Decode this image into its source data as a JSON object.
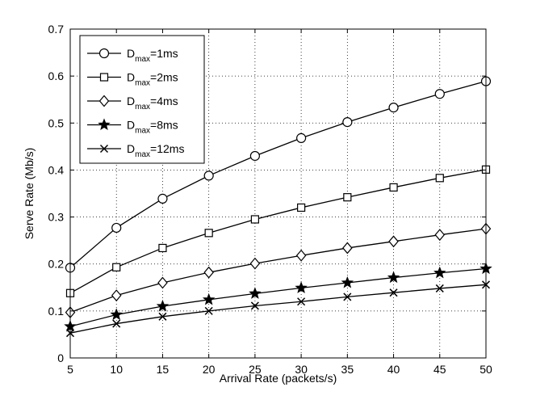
{
  "chart_data": {
    "type": "line",
    "xlabel": "Arrival Rate (packets/s)",
    "ylabel": "Serve Rate (Mb/s)",
    "x": [
      5,
      10,
      15,
      20,
      25,
      30,
      35,
      40,
      45,
      50
    ],
    "xlim": [
      5,
      50
    ],
    "ylim": [
      0,
      0.7
    ],
    "xticks": [
      "5",
      "10",
      "15",
      "20",
      "25",
      "30",
      "35",
      "40",
      "45",
      "50"
    ],
    "yticks": [
      "0",
      "0.1",
      "0.2",
      "0.3",
      "0.4",
      "0.5",
      "0.6",
      "0.7"
    ],
    "grid": true,
    "legend_position": "top-left",
    "colors": {
      "line": "#000000",
      "grid": "#000000",
      "background": "#ffffff"
    },
    "series": [
      {
        "name": "D_max=1ms",
        "legend": {
          "base": "D",
          "sub": "max",
          "rest": "=1ms"
        },
        "marker": "circle",
        "values": [
          0.192,
          0.277,
          0.339,
          0.388,
          0.43,
          0.468,
          0.502,
          0.533,
          0.562,
          0.589
        ]
      },
      {
        "name": "D_max=2ms",
        "legend": {
          "base": "D",
          "sub": "max",
          "rest": "=2ms"
        },
        "marker": "square",
        "values": [
          0.138,
          0.193,
          0.234,
          0.266,
          0.295,
          0.32,
          0.342,
          0.363,
          0.383,
          0.401
        ]
      },
      {
        "name": "D_max=4ms",
        "legend": {
          "base": "D",
          "sub": "max",
          "rest": "=4ms"
        },
        "marker": "diamond",
        "values": [
          0.097,
          0.133,
          0.16,
          0.182,
          0.201,
          0.218,
          0.234,
          0.248,
          0.262,
          0.275
        ]
      },
      {
        "name": "D_max=8ms",
        "legend": {
          "base": "D",
          "sub": "max",
          "rest": "=8ms"
        },
        "marker": "star",
        "values": [
          0.067,
          0.092,
          0.11,
          0.124,
          0.137,
          0.149,
          0.16,
          0.171,
          0.181,
          0.19
        ]
      },
      {
        "name": "D_max=12ms",
        "legend": {
          "base": "D",
          "sub": "max",
          "rest": "=12ms"
        },
        "marker": "x",
        "values": [
          0.053,
          0.073,
          0.088,
          0.1,
          0.111,
          0.12,
          0.13,
          0.139,
          0.148,
          0.156
        ]
      }
    ]
  }
}
